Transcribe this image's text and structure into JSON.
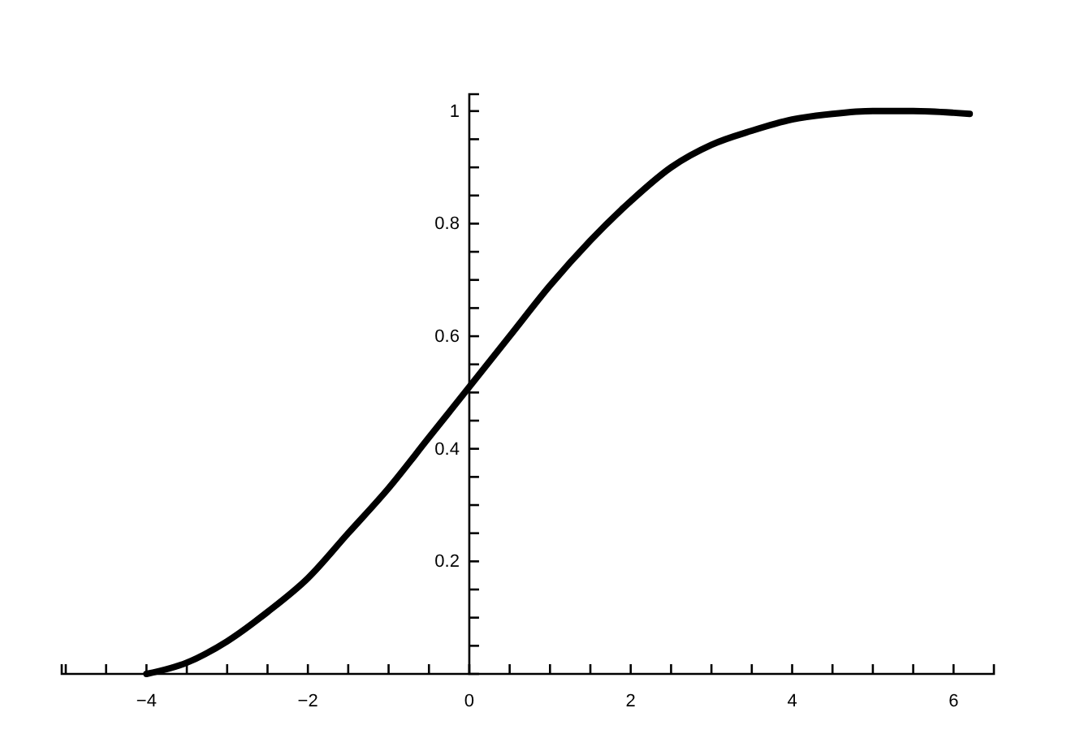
{
  "chart_data": {
    "type": "line",
    "x": [
      -4,
      -3.5,
      -3,
      -2.5,
      -2,
      -1.5,
      -1,
      -0.5,
      0,
      0.5,
      1,
      1.5,
      2,
      2.5,
      3,
      3.5,
      4,
      4.5,
      5,
      5.5,
      6,
      6.2
    ],
    "values": [
      0,
      0.02,
      0.058,
      0.11,
      0.17,
      0.25,
      0.33,
      0.42,
      0.51,
      0.6,
      0.69,
      0.77,
      0.84,
      0.9,
      0.94,
      0.965,
      0.985,
      0.995,
      1.0,
      1.0,
      0.997,
      0.995
    ],
    "color": "#000000",
    "xlim": [
      -5.05,
      6.5
    ],
    "xticks": [
      {
        "value": -5,
        "label": null
      },
      {
        "value": -4.5,
        "label": null
      },
      {
        "value": -4,
        "label": "−4"
      },
      {
        "value": -3.5,
        "label": null
      },
      {
        "value": -3,
        "label": null
      },
      {
        "value": -2.5,
        "label": null
      },
      {
        "value": -2,
        "label": "−2"
      },
      {
        "value": -1.5,
        "label": null
      },
      {
        "value": -1,
        "label": null
      },
      {
        "value": -0.5,
        "label": null
      },
      0,
      {
        "value": 0.5,
        "label": null
      },
      {
        "value": 1,
        "label": null
      },
      {
        "value": 1.5,
        "label": null
      },
      2,
      {
        "value": 2.5,
        "label": null
      },
      {
        "value": 3,
        "label": null
      },
      {
        "value": 3.5,
        "label": null
      },
      4,
      {
        "value": 4.5,
        "label": null
      },
      {
        "value": 5,
        "label": null
      },
      {
        "value": 5.5,
        "label": null
      },
      6
    ],
    "ylim": [
      0,
      1.03
    ],
    "yticks": [
      {
        "value": 0.05,
        "label": null
      },
      {
        "value": 0.1,
        "label": null
      },
      {
        "value": 0.15,
        "label": null
      },
      0.2,
      {
        "value": 0.25,
        "label": null
      },
      {
        "value": 0.3,
        "label": null
      },
      {
        "value": 0.35,
        "label": null
      },
      0.4,
      {
        "value": 0.45,
        "label": null
      },
      {
        "value": 0.5,
        "label": null
      },
      {
        "value": 0.55,
        "label": null
      },
      0.6,
      {
        "value": 0.65,
        "label": null
      },
      {
        "value": 0.7,
        "label": null
      },
      {
        "value": 0.75,
        "label": null
      },
      0.8,
      {
        "value": 0.85,
        "label": null
      },
      {
        "value": 0.9,
        "label": null
      },
      {
        "value": 0.95,
        "label": null
      },
      1
    ],
    "marker": "none",
    "line_style": "solid",
    "grid": false
  }
}
